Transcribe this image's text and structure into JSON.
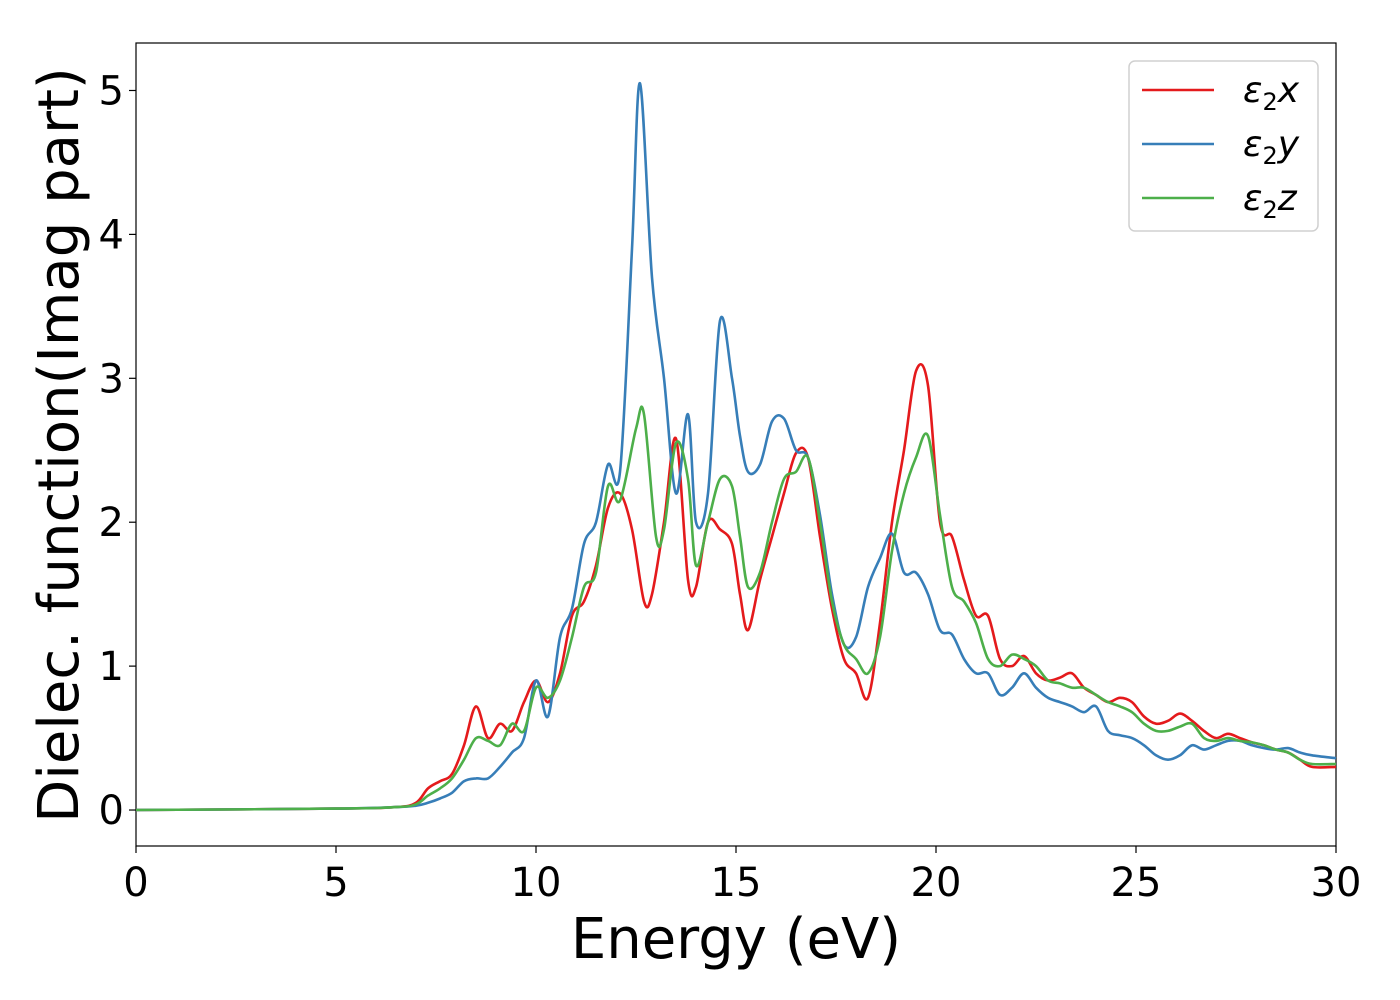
{
  "chart_data": {
    "type": "line",
    "title": "",
    "xlabel": "Energy (eV)",
    "ylabel": "Dielec. function(Imag part)",
    "xlim": [
      0,
      30
    ],
    "ylim": [
      -0.25,
      5.33
    ],
    "xticks": [
      0,
      5,
      10,
      15,
      20,
      25,
      30
    ],
    "yticks": [
      0,
      1,
      2,
      3,
      4,
      5
    ],
    "grid": false,
    "legend_position": "top-right",
    "series": [
      {
        "name": "ε₂x",
        "legend": {
          "base": "ε",
          "sub": "2",
          "axis": "x"
        },
        "color": "#e41a1c",
        "x": [
          0,
          5,
          6.5,
          7.0,
          7.3,
          7.6,
          7.9,
          8.2,
          8.5,
          8.8,
          9.1,
          9.4,
          9.7,
          10.0,
          10.3,
          10.6,
          10.9,
          11.2,
          11.5,
          11.8,
          12.1,
          12.4,
          12.7,
          12.9,
          13.2,
          13.5,
          13.8,
          14.0,
          14.3,
          14.6,
          14.9,
          15.1,
          15.3,
          15.6,
          15.9,
          16.2,
          16.5,
          16.8,
          17.1,
          17.4,
          17.7,
          18.0,
          18.3,
          18.6,
          18.9,
          19.2,
          19.5,
          19.8,
          20.1,
          20.4,
          20.7,
          21.0,
          21.3,
          21.6,
          21.9,
          22.2,
          22.5,
          22.8,
          23.1,
          23.4,
          23.7,
          24.0,
          24.3,
          24.6,
          24.9,
          25.2,
          25.5,
          25.8,
          26.1,
          26.4,
          26.7,
          27.0,
          27.3,
          27.6,
          27.9,
          28.2,
          28.5,
          28.8,
          29.1,
          29.4,
          30.0
        ],
        "y": [
          0.0,
          0.01,
          0.02,
          0.05,
          0.15,
          0.2,
          0.25,
          0.45,
          0.72,
          0.5,
          0.6,
          0.55,
          0.75,
          0.9,
          0.75,
          0.95,
          1.35,
          1.45,
          1.7,
          2.1,
          2.2,
          1.95,
          1.45,
          1.5,
          2.0,
          2.58,
          1.6,
          1.55,
          2.0,
          1.95,
          1.85,
          1.5,
          1.25,
          1.6,
          1.9,
          2.2,
          2.48,
          2.45,
          1.9,
          1.4,
          1.05,
          0.95,
          0.78,
          1.3,
          2.0,
          2.5,
          3.05,
          2.95,
          2.0,
          1.9,
          1.6,
          1.35,
          1.35,
          1.05,
          1.0,
          1.07,
          0.95,
          0.9,
          0.92,
          0.95,
          0.85,
          0.8,
          0.75,
          0.78,
          0.75,
          0.65,
          0.6,
          0.62,
          0.67,
          0.62,
          0.55,
          0.5,
          0.53,
          0.5,
          0.47,
          0.45,
          0.42,
          0.4,
          0.35,
          0.3,
          0.3
        ]
      },
      {
        "name": "ε₂y",
        "legend": {
          "base": "ε",
          "sub": "2",
          "axis": "y"
        },
        "color": "#377eb8",
        "x": [
          0,
          5,
          6.5,
          7.0,
          7.3,
          7.6,
          7.9,
          8.2,
          8.5,
          8.8,
          9.1,
          9.4,
          9.7,
          10.0,
          10.3,
          10.6,
          10.9,
          11.2,
          11.5,
          11.8,
          12.1,
          12.4,
          12.6,
          12.9,
          13.2,
          13.5,
          13.8,
          14.0,
          14.3,
          14.6,
          14.9,
          15.1,
          15.3,
          15.6,
          15.9,
          16.2,
          16.5,
          16.8,
          17.1,
          17.4,
          17.7,
          18.0,
          18.3,
          18.6,
          18.9,
          19.2,
          19.5,
          19.8,
          20.1,
          20.4,
          20.7,
          21.0,
          21.3,
          21.6,
          21.9,
          22.2,
          22.5,
          22.8,
          23.1,
          23.4,
          23.7,
          24.0,
          24.3,
          24.6,
          24.9,
          25.2,
          25.5,
          25.8,
          26.1,
          26.4,
          26.7,
          27.0,
          27.3,
          27.6,
          27.9,
          28.2,
          28.5,
          28.8,
          29.1,
          29.4,
          30.0
        ],
        "y": [
          0.0,
          0.01,
          0.02,
          0.03,
          0.05,
          0.08,
          0.12,
          0.2,
          0.22,
          0.22,
          0.3,
          0.4,
          0.5,
          0.9,
          0.65,
          1.2,
          1.4,
          1.85,
          2.0,
          2.4,
          2.35,
          3.9,
          5.05,
          3.7,
          3.0,
          2.2,
          2.75,
          2.0,
          2.2,
          3.4,
          3.0,
          2.6,
          2.35,
          2.4,
          2.7,
          2.72,
          2.5,
          2.45,
          2.05,
          1.5,
          1.15,
          1.2,
          1.55,
          1.75,
          1.92,
          1.65,
          1.65,
          1.5,
          1.25,
          1.22,
          1.05,
          0.95,
          0.95,
          0.8,
          0.85,
          0.95,
          0.85,
          0.78,
          0.75,
          0.72,
          0.68,
          0.72,
          0.55,
          0.52,
          0.5,
          0.45,
          0.38,
          0.35,
          0.38,
          0.45,
          0.42,
          0.45,
          0.48,
          0.48,
          0.45,
          0.43,
          0.42,
          0.43,
          0.4,
          0.38,
          0.36
        ]
      },
      {
        "name": "ε₂z",
        "legend": {
          "base": "ε",
          "sub": "2",
          "axis": "z"
        },
        "color": "#4daf4a",
        "x": [
          0,
          5,
          6.5,
          7.0,
          7.3,
          7.6,
          7.9,
          8.2,
          8.5,
          8.8,
          9.1,
          9.4,
          9.7,
          10.0,
          10.3,
          10.6,
          10.9,
          11.2,
          11.5,
          11.8,
          12.1,
          12.5,
          12.7,
          13.0,
          13.2,
          13.5,
          13.8,
          14.0,
          14.3,
          14.6,
          14.9,
          15.1,
          15.3,
          15.6,
          15.9,
          16.2,
          16.5,
          16.8,
          17.1,
          17.4,
          17.7,
          18.0,
          18.3,
          18.6,
          18.9,
          19.2,
          19.5,
          19.8,
          20.1,
          20.4,
          20.7,
          21.0,
          21.3,
          21.6,
          21.9,
          22.2,
          22.5,
          22.8,
          23.1,
          23.4,
          23.7,
          24.0,
          24.3,
          24.6,
          24.9,
          25.2,
          25.5,
          25.8,
          26.1,
          26.4,
          26.7,
          27.0,
          27.3,
          27.6,
          27.9,
          28.2,
          28.5,
          28.8,
          29.1,
          29.4,
          30.0
        ],
        "y": [
          0.0,
          0.01,
          0.02,
          0.04,
          0.1,
          0.15,
          0.22,
          0.35,
          0.5,
          0.48,
          0.45,
          0.6,
          0.55,
          0.85,
          0.78,
          0.9,
          1.2,
          1.55,
          1.65,
          2.25,
          2.15,
          2.65,
          2.75,
          1.9,
          1.95,
          2.55,
          2.3,
          1.7,
          2.0,
          2.3,
          2.25,
          1.9,
          1.55,
          1.65,
          2.0,
          2.3,
          2.35,
          2.45,
          2.0,
          1.45,
          1.15,
          1.05,
          0.95,
          1.2,
          1.8,
          2.2,
          2.45,
          2.6,
          2.05,
          1.55,
          1.45,
          1.3,
          1.05,
          1.0,
          1.08,
          1.05,
          1.0,
          0.9,
          0.88,
          0.85,
          0.85,
          0.8,
          0.75,
          0.72,
          0.68,
          0.6,
          0.55,
          0.55,
          0.58,
          0.6,
          0.5,
          0.48,
          0.5,
          0.48,
          0.47,
          0.45,
          0.42,
          0.4,
          0.35,
          0.32,
          0.32
        ]
      }
    ]
  }
}
